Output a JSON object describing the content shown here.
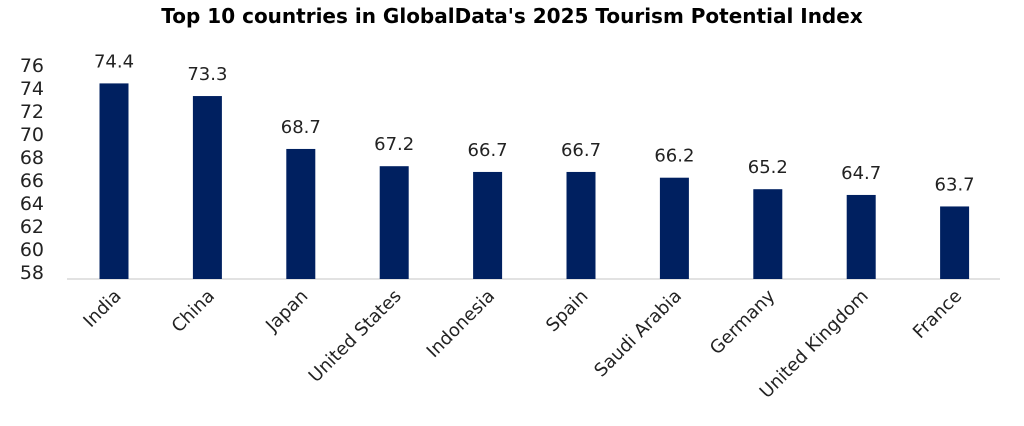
{
  "chart_data": {
    "type": "bar",
    "title": "Top 10 countries in GlobalData's 2025 Tourism Potential Index",
    "categories": [
      "India",
      "China",
      "Japan",
      "United States",
      "Indonesia",
      "Spain",
      "Saudi Arabia",
      "Germany",
      "United Kingdom",
      "France"
    ],
    "values": [
      74.4,
      73.3,
      68.7,
      67.2,
      66.7,
      66.7,
      66.2,
      65.2,
      64.7,
      63.7
    ],
    "data_labels": [
      "74.4",
      "73.3",
      "68.7",
      "67.2",
      "66.7",
      "66.7",
      "66.2",
      "65.2",
      "64.7",
      "63.7"
    ],
    "xlabel": "",
    "ylabel": "",
    "ylim": [
      58,
      76
    ],
    "yticks": [
      58,
      60,
      62,
      64,
      66,
      68,
      70,
      72,
      74,
      76
    ],
    "grid": false,
    "bar_color": "#002060",
    "axis_color": "#d9d9d9"
  }
}
